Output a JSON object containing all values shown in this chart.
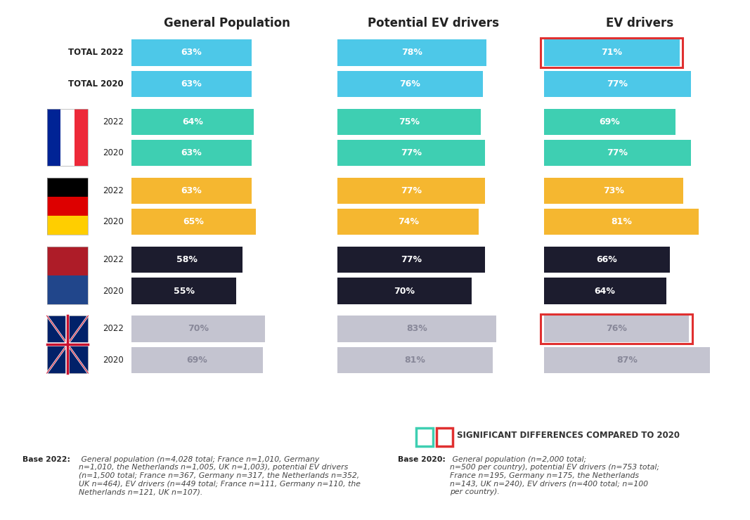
{
  "col_headers": [
    "General Population",
    "Potential EV drivers",
    "EV drivers"
  ],
  "values": [
    [
      63,
      63,
      78,
      76,
      71,
      77
    ],
    [
      64,
      63,
      75,
      77,
      69,
      77
    ],
    [
      63,
      65,
      77,
      74,
      73,
      81
    ],
    [
      58,
      55,
      77,
      70,
      66,
      64
    ],
    [
      70,
      69,
      83,
      81,
      76,
      87
    ]
  ],
  "bar_colors": [
    "#4DC8E8",
    "#3ECFB2",
    "#F5B730",
    "#1C1C2E",
    "#C4C4D0"
  ],
  "text_colors": [
    "#FFFFFF",
    "#FFFFFF",
    "#FFFFFF",
    "#FFFFFF",
    "#888899"
  ],
  "red_borders": [
    [
      false,
      false,
      false,
      false,
      true,
      false
    ],
    [
      false,
      false,
      false,
      false,
      false,
      false
    ],
    [
      false,
      false,
      false,
      false,
      false,
      false
    ],
    [
      false,
      false,
      false,
      false,
      false,
      false
    ],
    [
      false,
      false,
      false,
      false,
      true,
      false
    ]
  ],
  "background_color": "#FFFFFF",
  "legend_text": "SIGNIFICANT DIFFERENCES COMPARED TO 2020",
  "footnote_left_bold": "Base 2022:",
  "footnote_left_italic": " General population (n=4,028 total; France n=1,010, Germany\nn=1,010, the Netherlands n=1,005, UK n=1,003), potential EV drivers\n(n=1,500 total; France n=367, Germany n=317, the Netherlands n=352,\nUK n=464), EV drivers (n=449 total; France n=111, Germany n=110, the\nNetherlands n=121, UK n=107).",
  "footnote_right_bold": "Base 2020:",
  "footnote_right_italic": " General population (n=2,000 total;\nn=500 per country), potential EV drivers (n=753 total;\nFrance n=195, Germany n=175, the Netherlands\nn=143, UK n=240), EV drivers (n=400 total; n=100\nper country)."
}
